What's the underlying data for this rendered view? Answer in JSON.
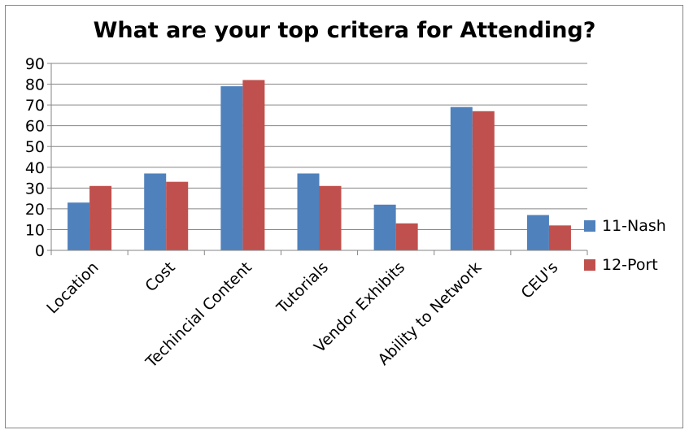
{
  "chart_data": {
    "type": "bar",
    "title": "What are your top critera for Attending?",
    "xlabel": "",
    "ylabel": "",
    "ylim": [
      0,
      90
    ],
    "yticks": [
      0,
      10,
      20,
      30,
      40,
      50,
      60,
      70,
      80,
      90
    ],
    "grid": true,
    "legend": "right",
    "categories": [
      "Location",
      "Cost",
      "Techincial Content",
      "Tutorials",
      "Vendor Exhibits",
      "Ability to Network",
      "CEU's"
    ],
    "series": [
      {
        "name": "11-Nash",
        "color": "#4F81BD",
        "values": [
          23,
          37,
          79,
          37,
          22,
          69,
          17
        ]
      },
      {
        "name": "12-Port",
        "color": "#C0504D",
        "values": [
          31,
          33,
          82,
          31,
          13,
          67,
          12
        ]
      }
    ]
  }
}
